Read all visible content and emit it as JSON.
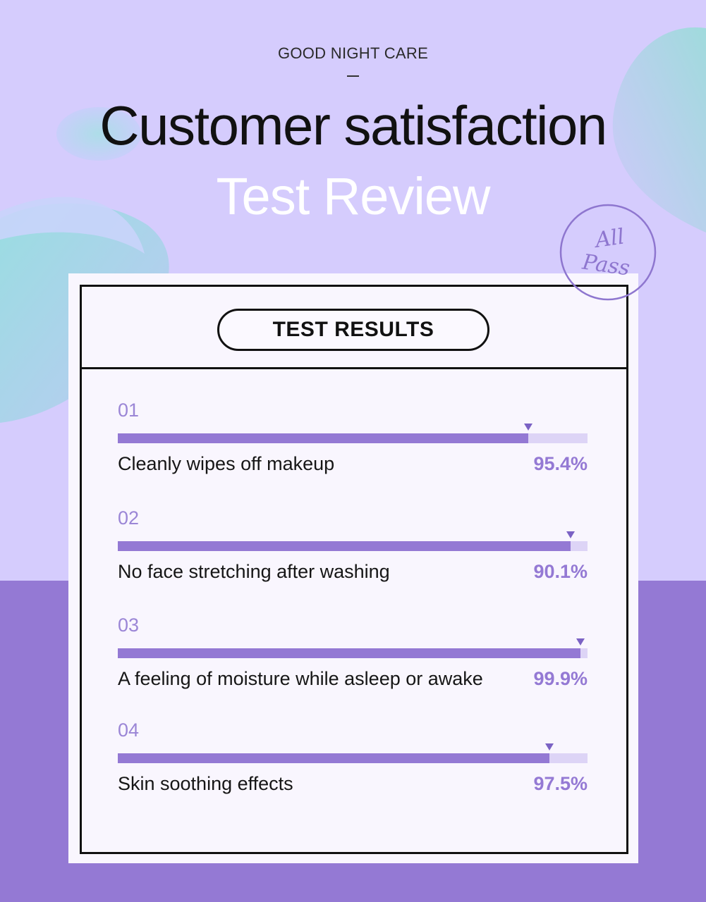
{
  "header": {
    "eyebrow": "GOOD NIGHT CARE",
    "title": "Customer satisfaction",
    "subtitle": "Test Review"
  },
  "stamp": {
    "line1": "All",
    "line2": "Pass"
  },
  "card": {
    "title": "TEST RESULTS"
  },
  "colors": {
    "accent": "#9479d4",
    "track": "#ddd4f6",
    "marker": "#7b62c4",
    "card_bg": "#f9f6fe",
    "page_bottom": "#9479d4"
  },
  "results": [
    {
      "number": "01",
      "label": "Cleanly wipes off makeup",
      "percent_text": "95.4%",
      "value": 95.4
    },
    {
      "number": "02",
      "label": "No face stretching after washing",
      "percent_text": "90.1%",
      "value": 90.1
    },
    {
      "number": "03",
      "label": "A feeling of moisture while asleep or awake",
      "percent_text": "99.9%",
      "value": 99.9
    },
    {
      "number": "04",
      "label": "Skin soothing effects",
      "percent_text": "97.5%",
      "value": 97.5
    }
  ]
}
